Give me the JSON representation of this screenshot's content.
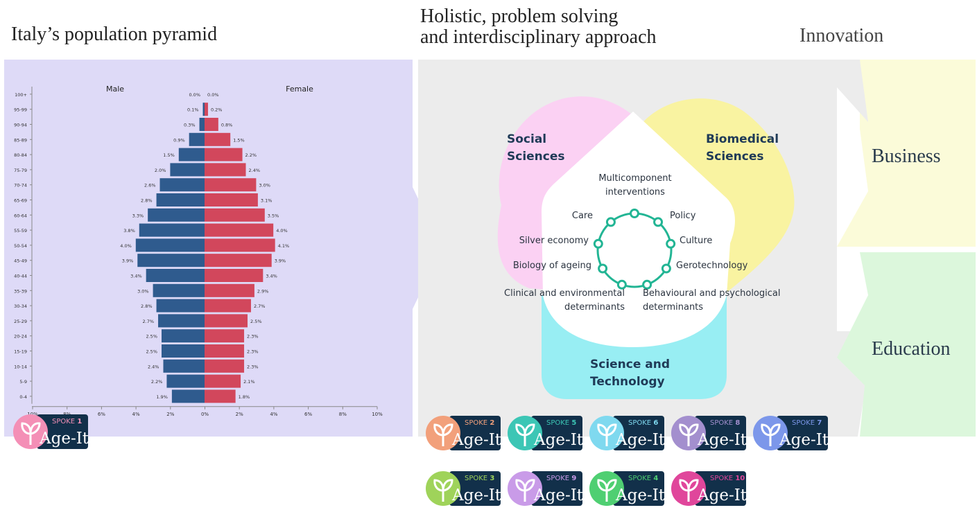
{
  "headings": {
    "pyramid": "Italy’s population pyramid",
    "approach_line1": "Holistic, problem solving",
    "approach_line2": "and interdisciplinary approach",
    "innovation": "Innovation"
  },
  "chart_data": {
    "type": "bar",
    "orientation": "horizontal-population-pyramid",
    "title": "",
    "xlabel": "",
    "ylabel": "",
    "xlim": [
      -10,
      10
    ],
    "x_tick_labels": [
      "10%",
      "8%",
      "6%",
      "4%",
      "2%",
      "0%",
      "2%",
      "4%",
      "6%",
      "8%",
      "10%"
    ],
    "categories": [
      "100+",
      "95-99",
      "90-94",
      "85-89",
      "80-84",
      "75-79",
      "70-74",
      "65-69",
      "60-64",
      "55-59",
      "50-54",
      "45-49",
      "40-44",
      "35-39",
      "30-34",
      "25-29",
      "20-24",
      "15-19",
      "10-14",
      "5-9",
      "0-4"
    ],
    "series": [
      {
        "name": "Male",
        "color": "#2f5b8e",
        "values": [
          0.0,
          0.1,
          0.3,
          0.9,
          1.5,
          2.0,
          2.6,
          2.8,
          3.3,
          3.8,
          4.0,
          3.9,
          3.4,
          3.0,
          2.8,
          2.7,
          2.5,
          2.5,
          2.4,
          2.2,
          1.9
        ],
        "labels": [
          "0.0%",
          "0.1%",
          "0.3%",
          "0.9%",
          "1.5%",
          "2.0%",
          "2.6%",
          "2.8%",
          "3.3%",
          "3.8%",
          "4.0%",
          "3.9%",
          "3.4%",
          "3.0%",
          "2.8%",
          "2.7%",
          "2.5%",
          "2.5%",
          "2.4%",
          "2.2%",
          "1.9%"
        ]
      },
      {
        "name": "Female",
        "color": "#d2475c",
        "values": [
          0.0,
          0.2,
          0.8,
          1.5,
          2.2,
          2.4,
          3.0,
          3.1,
          3.5,
          4.0,
          4.1,
          3.9,
          3.4,
          2.9,
          2.7,
          2.5,
          2.3,
          2.3,
          2.3,
          2.1,
          1.8
        ],
        "labels": [
          "0.0%",
          "0.2%",
          "0.8%",
          "1.5%",
          "2.2%",
          "2.4%",
          "3.0%",
          "3.1%",
          "3.5%",
          "4.0%",
          "4.1%",
          "3.9%",
          "3.4%",
          "2.9%",
          "2.7%",
          "2.5%",
          "2.3%",
          "2.3%",
          "2.3%",
          "2.1%",
          "1.8%"
        ]
      }
    ]
  },
  "diagram": {
    "petals": {
      "social": "Social Sciences",
      "social_l1": "Social",
      "social_l2": "Sciences",
      "biomedical_l1": "Biomedical",
      "biomedical_l2": "Sciences",
      "science_l1": "Science and",
      "science_l2": "Technology"
    },
    "colors": {
      "social": "#fbd1f3",
      "biomedical": "#f9f3a1",
      "science": "#98eef3",
      "ring": "#22b594",
      "petal_text": "#1f3a57"
    },
    "topics": [
      {
        "id": "multicomponent",
        "l1": "Multicomponent",
        "l2": "interventions"
      },
      {
        "id": "care",
        "l1": "Care",
        "l2": ""
      },
      {
        "id": "policy",
        "l1": "Policy",
        "l2": ""
      },
      {
        "id": "silver",
        "l1": "Silver economy",
        "l2": ""
      },
      {
        "id": "culture",
        "l1": "Culture",
        "l2": ""
      },
      {
        "id": "biology",
        "l1": "Biology of ageing",
        "l2": ""
      },
      {
        "id": "gerotech",
        "l1": "Gerotechnology",
        "l2": ""
      },
      {
        "id": "clinical",
        "l1": "Clinical and environmental",
        "l2": "determinants"
      },
      {
        "id": "behavioural",
        "l1": "Behavioural and psychological",
        "l2": "determinants"
      }
    ]
  },
  "innovation": {
    "business": "Business",
    "education": "Education",
    "business_color": "#fbfbd9",
    "education_color": "#dcf7dc"
  },
  "spokes": {
    "brand": "Age-It",
    "word": "SPOKE",
    "items": [
      {
        "number": "1",
        "color": "#f48fb6"
      },
      {
        "number": "2",
        "color": "#f2a07b"
      },
      {
        "number": "5",
        "color": "#3cc6b5"
      },
      {
        "number": "6",
        "color": "#7fd9ef"
      },
      {
        "number": "8",
        "color": "#a38fce"
      },
      {
        "number": "7",
        "color": "#7c97ea"
      },
      {
        "number": "3",
        "color": "#9fd35a"
      },
      {
        "number": "9",
        "color": "#c99be8"
      },
      {
        "number": "4",
        "color": "#4fcf72"
      },
      {
        "number": "10",
        "color": "#e0469b"
      }
    ]
  }
}
